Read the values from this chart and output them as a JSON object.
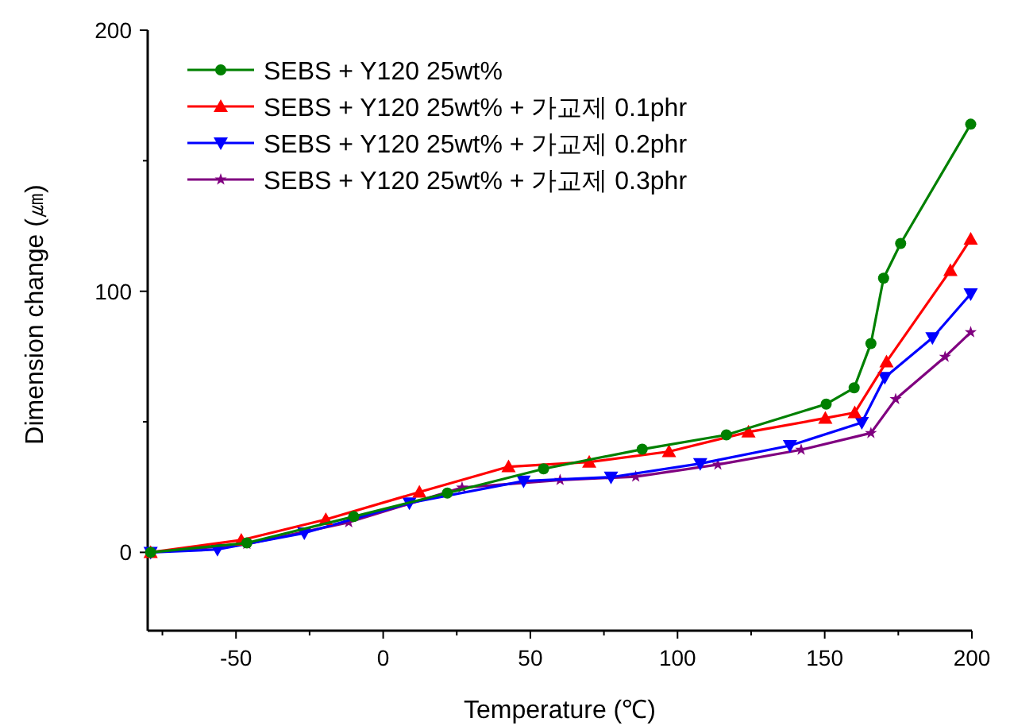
{
  "chart_data": {
    "type": "line",
    "xlabel": "Temperature (℃)",
    "ylabel": "Dimension change (㎛)",
    "xlim": [
      -80,
      200
    ],
    "ylim": [
      -30,
      200
    ],
    "xticks": [
      {
        "value": -75,
        "label": null
      },
      -50,
      {
        "value": -25,
        "label": null
      },
      0,
      {
        "value": 25,
        "label": null
      },
      50,
      {
        "value": 75,
        "label": null
      },
      100,
      {
        "value": 125,
        "label": null
      },
      150,
      {
        "value": 175,
        "label": null
      },
      200
    ],
    "yticks": [
      0,
      {
        "value": 50,
        "label": null
      },
      100,
      {
        "value": 150,
        "label": null
      },
      200
    ],
    "legend": "top left",
    "line_style": "solid",
    "series": [
      {
        "name": "SEBS + Y120 25wt%",
        "color": "#008000",
        "marker": "circle",
        "x": [
          -79,
          -46.3,
          -10,
          21.8,
          54.5,
          88,
          116.6,
          150.5,
          160,
          165.7,
          170,
          175.8,
          199.6
        ],
        "values": [
          0,
          3.6,
          13.7,
          22.7,
          32,
          39.5,
          45,
          56.8,
          63,
          80,
          105,
          118.3,
          164
        ]
      },
      {
        "name": "SEBS + Y120 25wt% + 가교제 0.1phr",
        "color": "#ff0000",
        "marker": "triangle",
        "x": [
          -79,
          -48.2,
          -19.5,
          12.3,
          42.6,
          70,
          97.1,
          124.1,
          150.2,
          160.2,
          171,
          192.7,
          199.6
        ],
        "values": [
          0,
          4.7,
          12.6,
          23.1,
          32.8,
          34.6,
          38.6,
          46.1,
          51.4,
          53.5,
          73,
          108,
          120
        ]
      },
      {
        "name": "SEBS + Y120 25wt% + 가교제 0.2phr",
        "color": "#0000ff",
        "marker": "triangle-down",
        "x": [
          -79,
          -56.3,
          -26.8,
          8.9,
          47.7,
          77.4,
          107.7,
          138.2,
          162.6,
          170.4,
          186.6,
          199.6
        ],
        "values": [
          0,
          1.1,
          7.4,
          18.9,
          27.3,
          28.8,
          34,
          40.9,
          49.7,
          67,
          82.2,
          99
        ]
      },
      {
        "name": "SEBS + Y120 25wt% + 가교제 0.3phr",
        "color": "#800080",
        "marker": "star",
        "x": [
          -79,
          -46.3,
          -11.7,
          26.8,
          60.1,
          85.8,
          113.7,
          142,
          165.7,
          174.1,
          190.9,
          199.6
        ],
        "values": [
          0,
          3.2,
          11.5,
          24.8,
          27.7,
          29,
          33.6,
          39.3,
          45.7,
          58.7,
          74.9,
          84.3
        ]
      }
    ]
  }
}
